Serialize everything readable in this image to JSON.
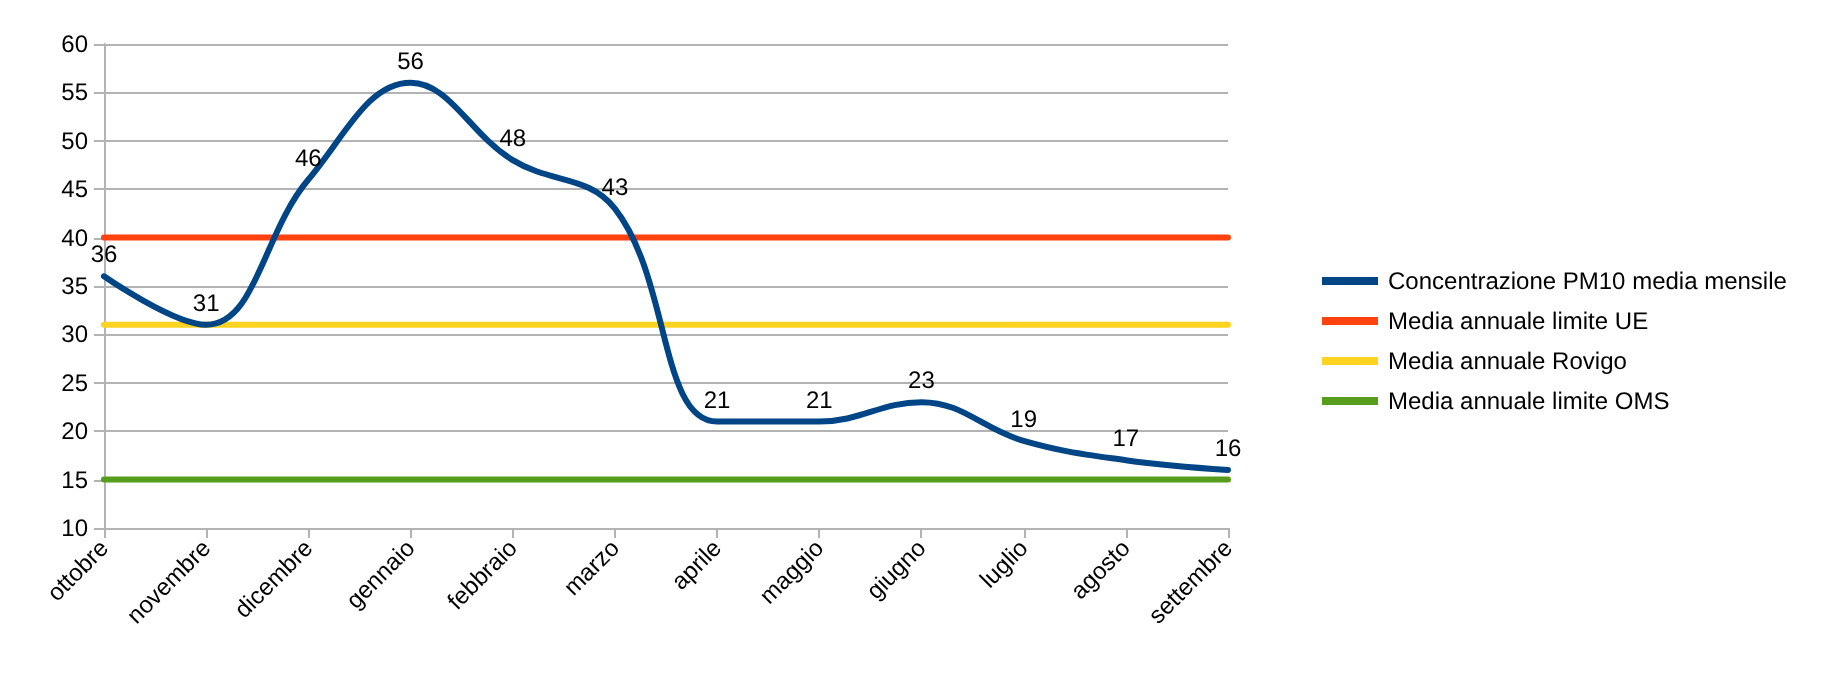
{
  "chart_data": {
    "type": "line",
    "categories": [
      "ottobre",
      "novembre",
      "dicembre",
      "gennaio",
      "febbraio",
      "marzo",
      "aprile",
      "maggio",
      "giugno",
      "luglio",
      "agosto",
      "settembre"
    ],
    "series": [
      {
        "name": "Concentrazione PM10 media mensile",
        "color": "#004586",
        "values": [
          36,
          31,
          46,
          56,
          48,
          43,
          21,
          21,
          23,
          19,
          17,
          16
        ],
        "value_labels": [
          "36",
          "31",
          "46",
          "56",
          "48",
          "43",
          "21",
          "21",
          "23",
          "19",
          "17",
          "16"
        ]
      },
      {
        "name": "Media annuale limite UE",
        "color": "#ff420e",
        "values": [
          40,
          40,
          40,
          40,
          40,
          40,
          40,
          40,
          40,
          40,
          40,
          40
        ]
      },
      {
        "name": "Media annuale Rovigo",
        "color": "#ffd320",
        "values": [
          31,
          31,
          31,
          31,
          31,
          31,
          31,
          31,
          31,
          31,
          31,
          31
        ]
      },
      {
        "name": "Media annuale limite OMS",
        "color": "#579d1c",
        "values": [
          15,
          15,
          15,
          15,
          15,
          15,
          15,
          15,
          15,
          15,
          15,
          15
        ]
      }
    ],
    "ylim": [
      10,
      60
    ],
    "yticks": [
      10,
      15,
      20,
      25,
      30,
      35,
      40,
      45,
      50,
      55,
      60
    ],
    "grid": "y",
    "legend": "right",
    "marker": "none",
    "line_style": "solid"
  }
}
